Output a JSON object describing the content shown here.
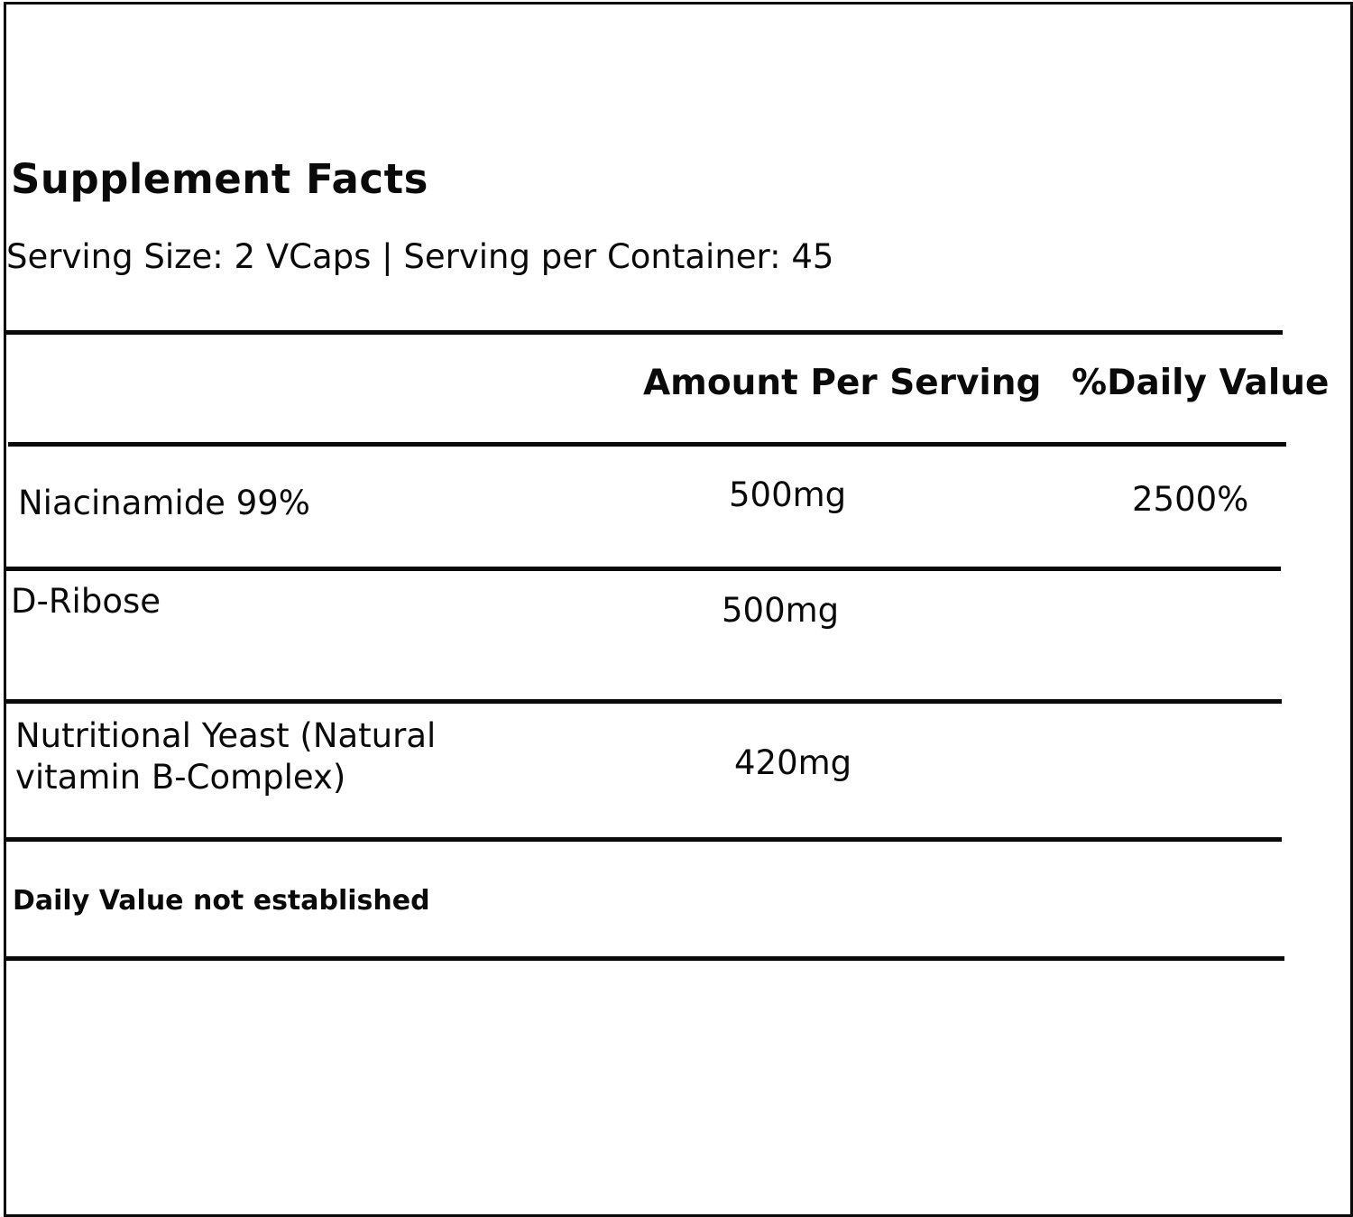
{
  "label": {
    "title": "Supplement Facts",
    "serving_line": "Serving Size: 2  VCaps | Serving per Container: 45",
    "columns": {
      "amount": "Amount Per Serving",
      "daily_value": "%Daily Value"
    },
    "rows": [
      {
        "name": "Niacinamide 99%",
        "amount": "500mg",
        "daily_value": "2500%"
      },
      {
        "name": "D-Ribose",
        "amount": "500mg",
        "daily_value": ""
      },
      {
        "name_line1": "Nutritional Yeast (Natural",
        "name_line2": "vitamin B-Complex)",
        "amount": "420mg",
        "daily_value": ""
      }
    ],
    "footnote": "Daily Value not established"
  }
}
